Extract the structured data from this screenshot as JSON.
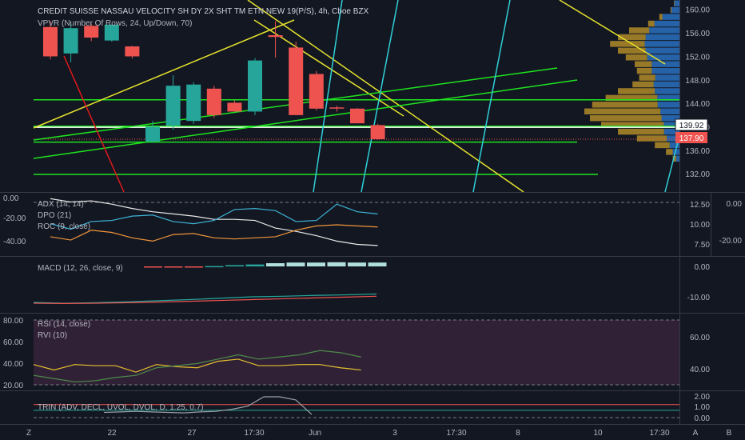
{
  "header": {
    "title": "CREDIT SUISSE NASSAU VELOCITY SH DY 2X SHT TM ETN NEW 19(P/S), 4h, Cboe BZX",
    "vpvr_label": "VPVR (Number Of Rows, 24, Up/Down, 70)"
  },
  "colors": {
    "background": "#131722",
    "up_candle": "#26a69a",
    "down_candle": "#ef5350",
    "trend_yellow": "#e5e22c",
    "trend_green": "#1ee31e",
    "trend_cyan": "#2fd0d8",
    "trend_red": "#e0191b",
    "vpvr_up": "#2e7cd6",
    "vpvr_down": "#c69b29",
    "last_price_tag": "#ef5350",
    "rsi_band": "#4a2a48"
  },
  "price_tags": {
    "marked": "139.92",
    "last": "137.90"
  },
  "x_axis": {
    "labels": [
      "22",
      "27",
      "17:30",
      "Jun",
      "3",
      "17:30",
      "8",
      "10",
      "17:30"
    ]
  },
  "bottom_buttons": {
    "left": "Z",
    "right_auto": "A",
    "right_log": "B"
  },
  "panes": {
    "adx": {
      "labels": [
        "ADX (14, 14)",
        "DPO (21)",
        "ROC (9, close)"
      ],
      "left_ticks": [
        "0.00",
        "-20.00",
        "-40.00"
      ],
      "right_ticks": [
        "12.50",
        "10.00",
        "7.50"
      ],
      "far_right_ticks": [
        "0.00",
        "-20.00"
      ]
    },
    "macd": {
      "label": "MACD (12, 26, close, 9)",
      "right_ticks": [
        "0.00",
        "-10.00"
      ]
    },
    "rsi": {
      "labels": [
        "RSI (14, close)",
        "RVI (10)"
      ],
      "left_ticks": [
        "80.00",
        "60.00",
        "40.00",
        "20.00"
      ],
      "right_ticks": [
        "60.00",
        "40.00"
      ]
    },
    "trin": {
      "label": "TRIN (ADV, DECL, UVOL, DVOL, D, 1.25, 0.7)",
      "right_ticks": [
        "2.00",
        "1.00",
        "0.00"
      ]
    }
  },
  "chart_data": [
    {
      "type": "candlestick",
      "title": "CREDIT SUISSE NASSAU VELOCITY SH DY 2X SHT TM ETN NEW 19(P/S), 4h, Cboe BZX",
      "y_ticks": [
        160,
        156,
        152,
        148,
        144,
        140,
        136,
        132
      ],
      "ylim": [
        128.9,
        161.6
      ],
      "candles": [
        {
          "o": 157.0,
          "h": 158.0,
          "l": 151.5,
          "c": 152.0
        },
        {
          "o": 152.5,
          "h": 158.0,
          "l": 151.0,
          "c": 156.8
        },
        {
          "o": 157.2,
          "h": 157.6,
          "l": 154.6,
          "c": 155.2
        },
        {
          "o": 154.7,
          "h": 157.4,
          "l": 154.5,
          "c": 157.4
        },
        {
          "o": 153.7,
          "h": 153.8,
          "l": 151.6,
          "c": 152.0
        },
        {
          "o": 137.5,
          "h": 141.0,
          "l": 137.3,
          "c": 140.0
        },
        {
          "o": 140.2,
          "h": 148.8,
          "l": 139.5,
          "c": 147.0
        },
        {
          "o": 141.0,
          "h": 147.6,
          "l": 140.5,
          "c": 147.2
        },
        {
          "o": 146.5,
          "h": 147.0,
          "l": 141.5,
          "c": 142.0
        },
        {
          "o": 144.1,
          "h": 144.5,
          "l": 142.6,
          "c": 142.6
        },
        {
          "o": 142.6,
          "h": 151.7,
          "l": 142.0,
          "c": 151.3
        },
        {
          "o": 155.6,
          "h": 158.0,
          "l": 151.8,
          "c": 155.3
        },
        {
          "o": 153.5,
          "h": 154.5,
          "l": 142.0,
          "c": 142.0
        },
        {
          "o": 149.0,
          "h": 149.5,
          "l": 142.8,
          "c": 143.1
        },
        {
          "o": 143.3,
          "h": 143.6,
          "l": 142.6,
          "c": 143.1
        },
        {
          "o": 143.1,
          "h": 143.2,
          "l": 140.6,
          "c": 140.6
        },
        {
          "o": 140.3,
          "h": 140.5,
          "l": 137.8,
          "c": 137.9
        }
      ],
      "levels": [
        144.6,
        140.1,
        137.4,
        131.9
      ],
      "marked_price": 139.92,
      "last_price": 137.9
    },
    {
      "type": "line",
      "title": "ADX (14, 14) / DPO (21) / ROC (9, close)",
      "series": [
        {
          "name": "ADX (14, 14)",
          "color": "#e8e8e8",
          "values": [
            -1,
            -4,
            -3,
            -6,
            -10,
            -13,
            -15,
            -17,
            -20,
            -20,
            -21,
            -28,
            -31,
            -35,
            -40,
            -43,
            -44
          ]
        },
        {
          "name": "DPO (21)",
          "color": "#f0953a",
          "values": [
            -36,
            -39,
            -30,
            -32,
            -37,
            -40,
            -34,
            -33,
            -37,
            -38,
            -37,
            -36,
            -30,
            -26,
            -25,
            -26,
            -27
          ]
        },
        {
          "name": "ROC (9, close)",
          "color": "#3db2d4",
          "values": [
            -24,
            -29,
            -22,
            -21,
            -17,
            -16,
            -22,
            -24,
            -21,
            -11,
            -10,
            -12,
            -22,
            -21,
            -6,
            -13,
            -15
          ]
        }
      ]
    },
    {
      "type": "bar",
      "title": "MACD (12, 26, close, 9)",
      "histogram": [
        -0.2,
        -0.2,
        -0.1,
        0.1,
        0.4,
        0.6,
        1.0,
        1.2,
        1.2,
        1.3,
        1.2,
        1.2
      ],
      "series": [
        {
          "name": "MACD",
          "color": "#26a69a",
          "values": [
            -12.0,
            -12.3,
            -12.1,
            -11.8,
            -11.4,
            -11.0,
            -10.5,
            -10.0,
            -9.8,
            -9.5,
            -9.3,
            -9.0
          ]
        },
        {
          "name": "Signal",
          "color": "#ef5350",
          "values": [
            -12.3,
            -12.4,
            -12.3,
            -12.1,
            -11.9,
            -11.6,
            -11.3,
            -11.0,
            -10.7,
            -10.4,
            -10.1,
            -9.8
          ]
        }
      ]
    },
    {
      "type": "line",
      "title": "RSI (14, close) / RVI (10)",
      "series": [
        {
          "name": "RSI (14, close)",
          "color": "#e5c02c",
          "values": [
            38,
            33,
            38,
            37,
            37,
            31,
            38,
            36,
            35,
            41,
            43,
            37,
            37,
            38,
            38,
            35,
            33
          ]
        },
        {
          "name": "RVI (10)",
          "color": "#4c8c48",
          "values": [
            28,
            25,
            22,
            23,
            26,
            28,
            35,
            37,
            39,
            43,
            47,
            43,
            45,
            47,
            51,
            49,
            45
          ]
        }
      ]
    },
    {
      "type": "line",
      "title": "TRIN (ADV, DECL, UVOL, DVOL, D, 1.25, 0.7)",
      "series": [
        {
          "name": "TRIN",
          "color": "#9aa0a6",
          "values": [
            0.5,
            0.55,
            0.6,
            0.55,
            0.5,
            0.45,
            0.55,
            0.6,
            0.8,
            1.1,
            2.0,
            2.0,
            1.7,
            0.3
          ]
        }
      ]
    }
  ]
}
